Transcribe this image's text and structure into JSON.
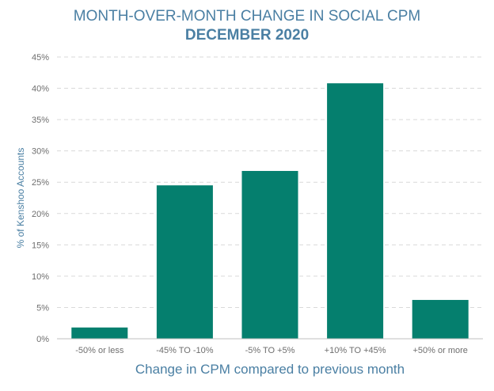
{
  "colors": {
    "bar": "#057f6e",
    "title": "#4a7fa3",
    "grid": "#d9d9d9",
    "tick_text": "#6e6e6e"
  },
  "chart_data": {
    "type": "bar",
    "title": "MONTH-OVER-MONTH CHANGE IN SOCIAL CPM",
    "subtitle": "DECEMBER 2020",
    "xlabel": "Change in CPM compared to previous month",
    "ylabel": "% of Kenshoo Accounts",
    "categories": [
      "-50% or less",
      "-45% TO -10%",
      "-5% TO +5%",
      "+10% TO +45%",
      "+50% or more"
    ],
    "values": [
      1.8,
      24.5,
      26.8,
      40.8,
      6.2
    ],
    "ylim": [
      0,
      45
    ],
    "yticks": [
      0,
      5,
      10,
      15,
      20,
      25,
      30,
      35,
      40,
      45
    ],
    "ytick_labels": [
      "0%",
      "5%",
      "10%",
      "15%",
      "20%",
      "25%",
      "30%",
      "35%",
      "40%",
      "45%"
    ],
    "grid": "horizontal dashed",
    "legend": "none"
  }
}
